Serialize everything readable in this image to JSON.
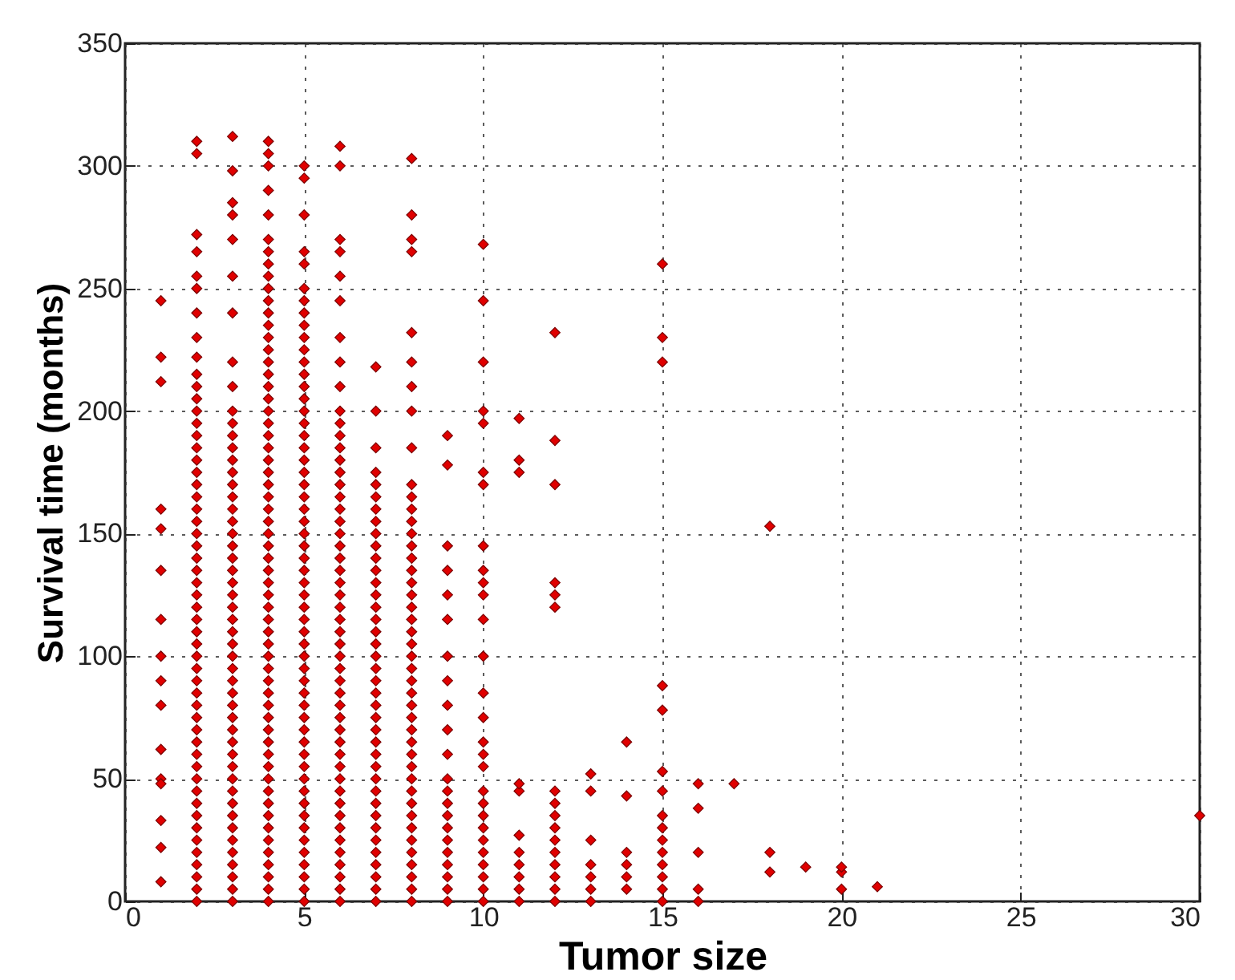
{
  "chart_data": {
    "type": "scatter",
    "xlabel": "Tumor size",
    "ylabel": "Survival time (months)",
    "xlim": [
      0,
      30
    ],
    "xticks": [
      0,
      5,
      10,
      15,
      20,
      25,
      30
    ],
    "ylim": [
      0,
      350
    ],
    "yticks": [
      0,
      50,
      100,
      150,
      200,
      250,
      300,
      350
    ],
    "grid": true,
    "marker": "diamond",
    "series": [
      {
        "color": "#e00000",
        "x": [
          1,
          1,
          1,
          1,
          1,
          1,
          1,
          1,
          1,
          1,
          1,
          1,
          1,
          1,
          1,
          1
        ],
        "values": [
          245,
          222,
          212,
          160,
          152,
          135,
          115,
          100,
          90,
          80,
          62,
          50,
          48,
          33,
          22,
          8
        ]
      },
      {
        "color": "#e00000",
        "x": [
          2,
          2,
          2,
          2,
          2,
          2,
          2,
          2,
          2,
          2,
          2,
          2,
          2,
          2,
          2,
          2,
          2,
          2,
          2,
          2,
          2,
          2,
          2,
          2,
          2,
          2,
          2,
          2,
          2,
          2,
          2,
          2,
          2,
          2,
          2,
          2,
          2,
          2,
          2,
          2,
          2,
          2,
          2,
          2,
          2,
          2,
          2,
          2,
          2,
          2,
          2,
          2,
          2
        ],
        "values": [
          0,
          5,
          10,
          15,
          20,
          25,
          30,
          35,
          40,
          45,
          50,
          55,
          60,
          65,
          70,
          75,
          80,
          85,
          90,
          95,
          100,
          105,
          110,
          115,
          120,
          125,
          130,
          135,
          140,
          145,
          150,
          155,
          160,
          165,
          170,
          175,
          180,
          185,
          190,
          195,
          200,
          205,
          210,
          215,
          222,
          230,
          240,
          250,
          255,
          265,
          272,
          305,
          310
        ]
      },
      {
        "color": "#e00000",
        "x": [
          3,
          3,
          3,
          3,
          3,
          3,
          3,
          3,
          3,
          3,
          3,
          3,
          3,
          3,
          3,
          3,
          3,
          3,
          3,
          3,
          3,
          3,
          3,
          3,
          3,
          3,
          3,
          3,
          3,
          3,
          3,
          3,
          3,
          3,
          3,
          3,
          3,
          3,
          3,
          3,
          3,
          3,
          3,
          3,
          3,
          3,
          3,
          3,
          3,
          3
        ],
        "values": [
          0,
          5,
          10,
          15,
          20,
          25,
          30,
          35,
          40,
          45,
          50,
          55,
          60,
          65,
          70,
          75,
          80,
          85,
          90,
          95,
          100,
          105,
          110,
          115,
          120,
          125,
          130,
          135,
          140,
          145,
          150,
          155,
          160,
          165,
          170,
          175,
          180,
          185,
          190,
          195,
          200,
          210,
          220,
          240,
          255,
          270,
          280,
          285,
          298,
          312
        ]
      },
      {
        "color": "#e00000",
        "x": [
          4,
          4,
          4,
          4,
          4,
          4,
          4,
          4,
          4,
          4,
          4,
          4,
          4,
          4,
          4,
          4,
          4,
          4,
          4,
          4,
          4,
          4,
          4,
          4,
          4,
          4,
          4,
          4,
          4,
          4,
          4,
          4,
          4,
          4,
          4,
          4,
          4,
          4,
          4,
          4,
          4,
          4,
          4,
          4,
          4,
          4,
          4,
          4,
          4,
          4,
          4,
          4,
          4,
          4,
          4,
          4,
          4,
          4,
          4,
          4
        ],
        "values": [
          0,
          5,
          10,
          15,
          20,
          25,
          30,
          35,
          40,
          45,
          50,
          55,
          60,
          65,
          70,
          75,
          80,
          85,
          90,
          95,
          100,
          105,
          110,
          115,
          120,
          125,
          130,
          135,
          140,
          145,
          150,
          155,
          160,
          165,
          170,
          175,
          180,
          185,
          190,
          195,
          200,
          205,
          210,
          215,
          220,
          225,
          230,
          235,
          240,
          245,
          250,
          255,
          260,
          265,
          270,
          280,
          290,
          300,
          305,
          310
        ]
      },
      {
        "color": "#e00000",
        "x": [
          5,
          5,
          5,
          5,
          5,
          5,
          5,
          5,
          5,
          5,
          5,
          5,
          5,
          5,
          5,
          5,
          5,
          5,
          5,
          5,
          5,
          5,
          5,
          5,
          5,
          5,
          5,
          5,
          5,
          5,
          5,
          5,
          5,
          5,
          5,
          5,
          5,
          5,
          5,
          5,
          5,
          5,
          5,
          5,
          5,
          5,
          5,
          5,
          5,
          5,
          5,
          5,
          5,
          5,
          5,
          5
        ],
        "values": [
          0,
          5,
          10,
          15,
          20,
          25,
          30,
          35,
          40,
          45,
          50,
          55,
          60,
          65,
          70,
          75,
          80,
          85,
          90,
          95,
          100,
          105,
          110,
          115,
          120,
          125,
          130,
          135,
          140,
          145,
          150,
          155,
          160,
          165,
          170,
          175,
          180,
          185,
          190,
          195,
          200,
          205,
          210,
          215,
          220,
          225,
          230,
          235,
          240,
          245,
          250,
          260,
          265,
          280,
          295,
          300
        ]
      },
      {
        "color": "#e00000",
        "x": [
          6,
          6,
          6,
          6,
          6,
          6,
          6,
          6,
          6,
          6,
          6,
          6,
          6,
          6,
          6,
          6,
          6,
          6,
          6,
          6,
          6,
          6,
          6,
          6,
          6,
          6,
          6,
          6,
          6,
          6,
          6,
          6,
          6,
          6,
          6,
          6,
          6,
          6,
          6,
          6,
          6,
          6,
          6,
          6,
          6,
          6,
          6,
          6,
          6,
          6
        ],
        "values": [
          0,
          5,
          10,
          15,
          20,
          25,
          30,
          35,
          40,
          45,
          50,
          55,
          60,
          65,
          70,
          75,
          80,
          85,
          90,
          95,
          100,
          105,
          110,
          115,
          120,
          125,
          130,
          135,
          140,
          145,
          150,
          155,
          160,
          165,
          170,
          175,
          180,
          185,
          190,
          195,
          200,
          210,
          220,
          230,
          245,
          255,
          265,
          270,
          300,
          308
        ]
      },
      {
        "color": "#e00000",
        "x": [
          7,
          7,
          7,
          7,
          7,
          7,
          7,
          7,
          7,
          7,
          7,
          7,
          7,
          7,
          7,
          7,
          7,
          7,
          7,
          7,
          7,
          7,
          7,
          7,
          7,
          7,
          7,
          7,
          7,
          7,
          7,
          7,
          7,
          7,
          7,
          7,
          7,
          7,
          7
        ],
        "values": [
          0,
          5,
          10,
          15,
          20,
          25,
          30,
          35,
          40,
          45,
          50,
          55,
          60,
          65,
          70,
          75,
          80,
          85,
          90,
          95,
          100,
          105,
          110,
          115,
          120,
          125,
          130,
          135,
          140,
          145,
          150,
          155,
          160,
          165,
          170,
          175,
          185,
          200,
          218
        ]
      },
      {
        "color": "#e00000",
        "x": [
          8,
          8,
          8,
          8,
          8,
          8,
          8,
          8,
          8,
          8,
          8,
          8,
          8,
          8,
          8,
          8,
          8,
          8,
          8,
          8,
          8,
          8,
          8,
          8,
          8,
          8,
          8,
          8,
          8,
          8,
          8,
          8,
          8,
          8,
          8,
          8,
          8,
          8,
          8,
          8,
          8,
          8,
          8,
          8
        ],
        "values": [
          0,
          5,
          10,
          15,
          20,
          25,
          30,
          35,
          40,
          45,
          50,
          55,
          60,
          65,
          70,
          75,
          80,
          85,
          90,
          95,
          100,
          105,
          110,
          115,
          120,
          125,
          130,
          135,
          140,
          145,
          150,
          155,
          160,
          165,
          170,
          185,
          200,
          210,
          220,
          232,
          265,
          270,
          280,
          303
        ]
      },
      {
        "color": "#e00000",
        "x": [
          9,
          9,
          9,
          9,
          9,
          9,
          9,
          9,
          9,
          9,
          9,
          9,
          9,
          9,
          9,
          9,
          9,
          9,
          9,
          9,
          9,
          9
        ],
        "values": [
          0,
          5,
          10,
          15,
          20,
          25,
          30,
          35,
          40,
          45,
          50,
          60,
          70,
          80,
          90,
          100,
          115,
          125,
          135,
          145,
          178,
          190
        ]
      },
      {
        "color": "#e00000",
        "x": [
          10,
          10,
          10,
          10,
          10,
          10,
          10,
          10,
          10,
          10,
          10,
          10,
          10,
          10,
          10,
          10,
          10,
          10,
          10,
          10,
          10,
          10,
          10,
          10,
          10,
          10,
          10,
          10
        ],
        "values": [
          0,
          5,
          10,
          15,
          20,
          25,
          30,
          35,
          40,
          45,
          55,
          60,
          65,
          75,
          85,
          100,
          115,
          125,
          130,
          135,
          145,
          170,
          175,
          195,
          200,
          220,
          245,
          268
        ]
      },
      {
        "color": "#e00000",
        "x": [
          11,
          11,
          11,
          11,
          11,
          11,
          11,
          11,
          11,
          11,
          11
        ],
        "values": [
          0,
          5,
          10,
          15,
          20,
          27,
          45,
          48,
          175,
          180,
          197
        ]
      },
      {
        "color": "#e00000",
        "x": [
          12,
          12,
          12,
          12,
          12,
          12,
          12,
          12,
          12,
          12,
          12,
          12,
          12,
          12,
          12,
          12
        ],
        "values": [
          0,
          5,
          10,
          15,
          20,
          25,
          30,
          35,
          40,
          45,
          120,
          125,
          130,
          170,
          188,
          232
        ]
      },
      {
        "color": "#e00000",
        "x": [
          13,
          13,
          13,
          13,
          13,
          13,
          13
        ],
        "values": [
          0,
          5,
          10,
          15,
          25,
          45,
          52
        ]
      },
      {
        "color": "#e00000",
        "x": [
          14,
          14,
          14,
          14,
          14,
          14
        ],
        "values": [
          5,
          10,
          15,
          20,
          43,
          65
        ]
      },
      {
        "color": "#e00000",
        "x": [
          15,
          15,
          15,
          15,
          15,
          15,
          15,
          15,
          15,
          15,
          15,
          15,
          15,
          15,
          15
        ],
        "values": [
          0,
          5,
          10,
          15,
          20,
          25,
          30,
          35,
          45,
          53,
          78,
          88,
          220,
          230,
          260
        ]
      },
      {
        "color": "#e00000",
        "x": [
          16,
          16,
          16,
          16,
          16,
          17,
          18,
          18,
          18,
          19,
          20,
          20,
          20,
          21,
          30
        ],
        "values": [
          0,
          5,
          20,
          38,
          48,
          48,
          12,
          20,
          153,
          14,
          5,
          12,
          14,
          6,
          35
        ]
      }
    ]
  }
}
